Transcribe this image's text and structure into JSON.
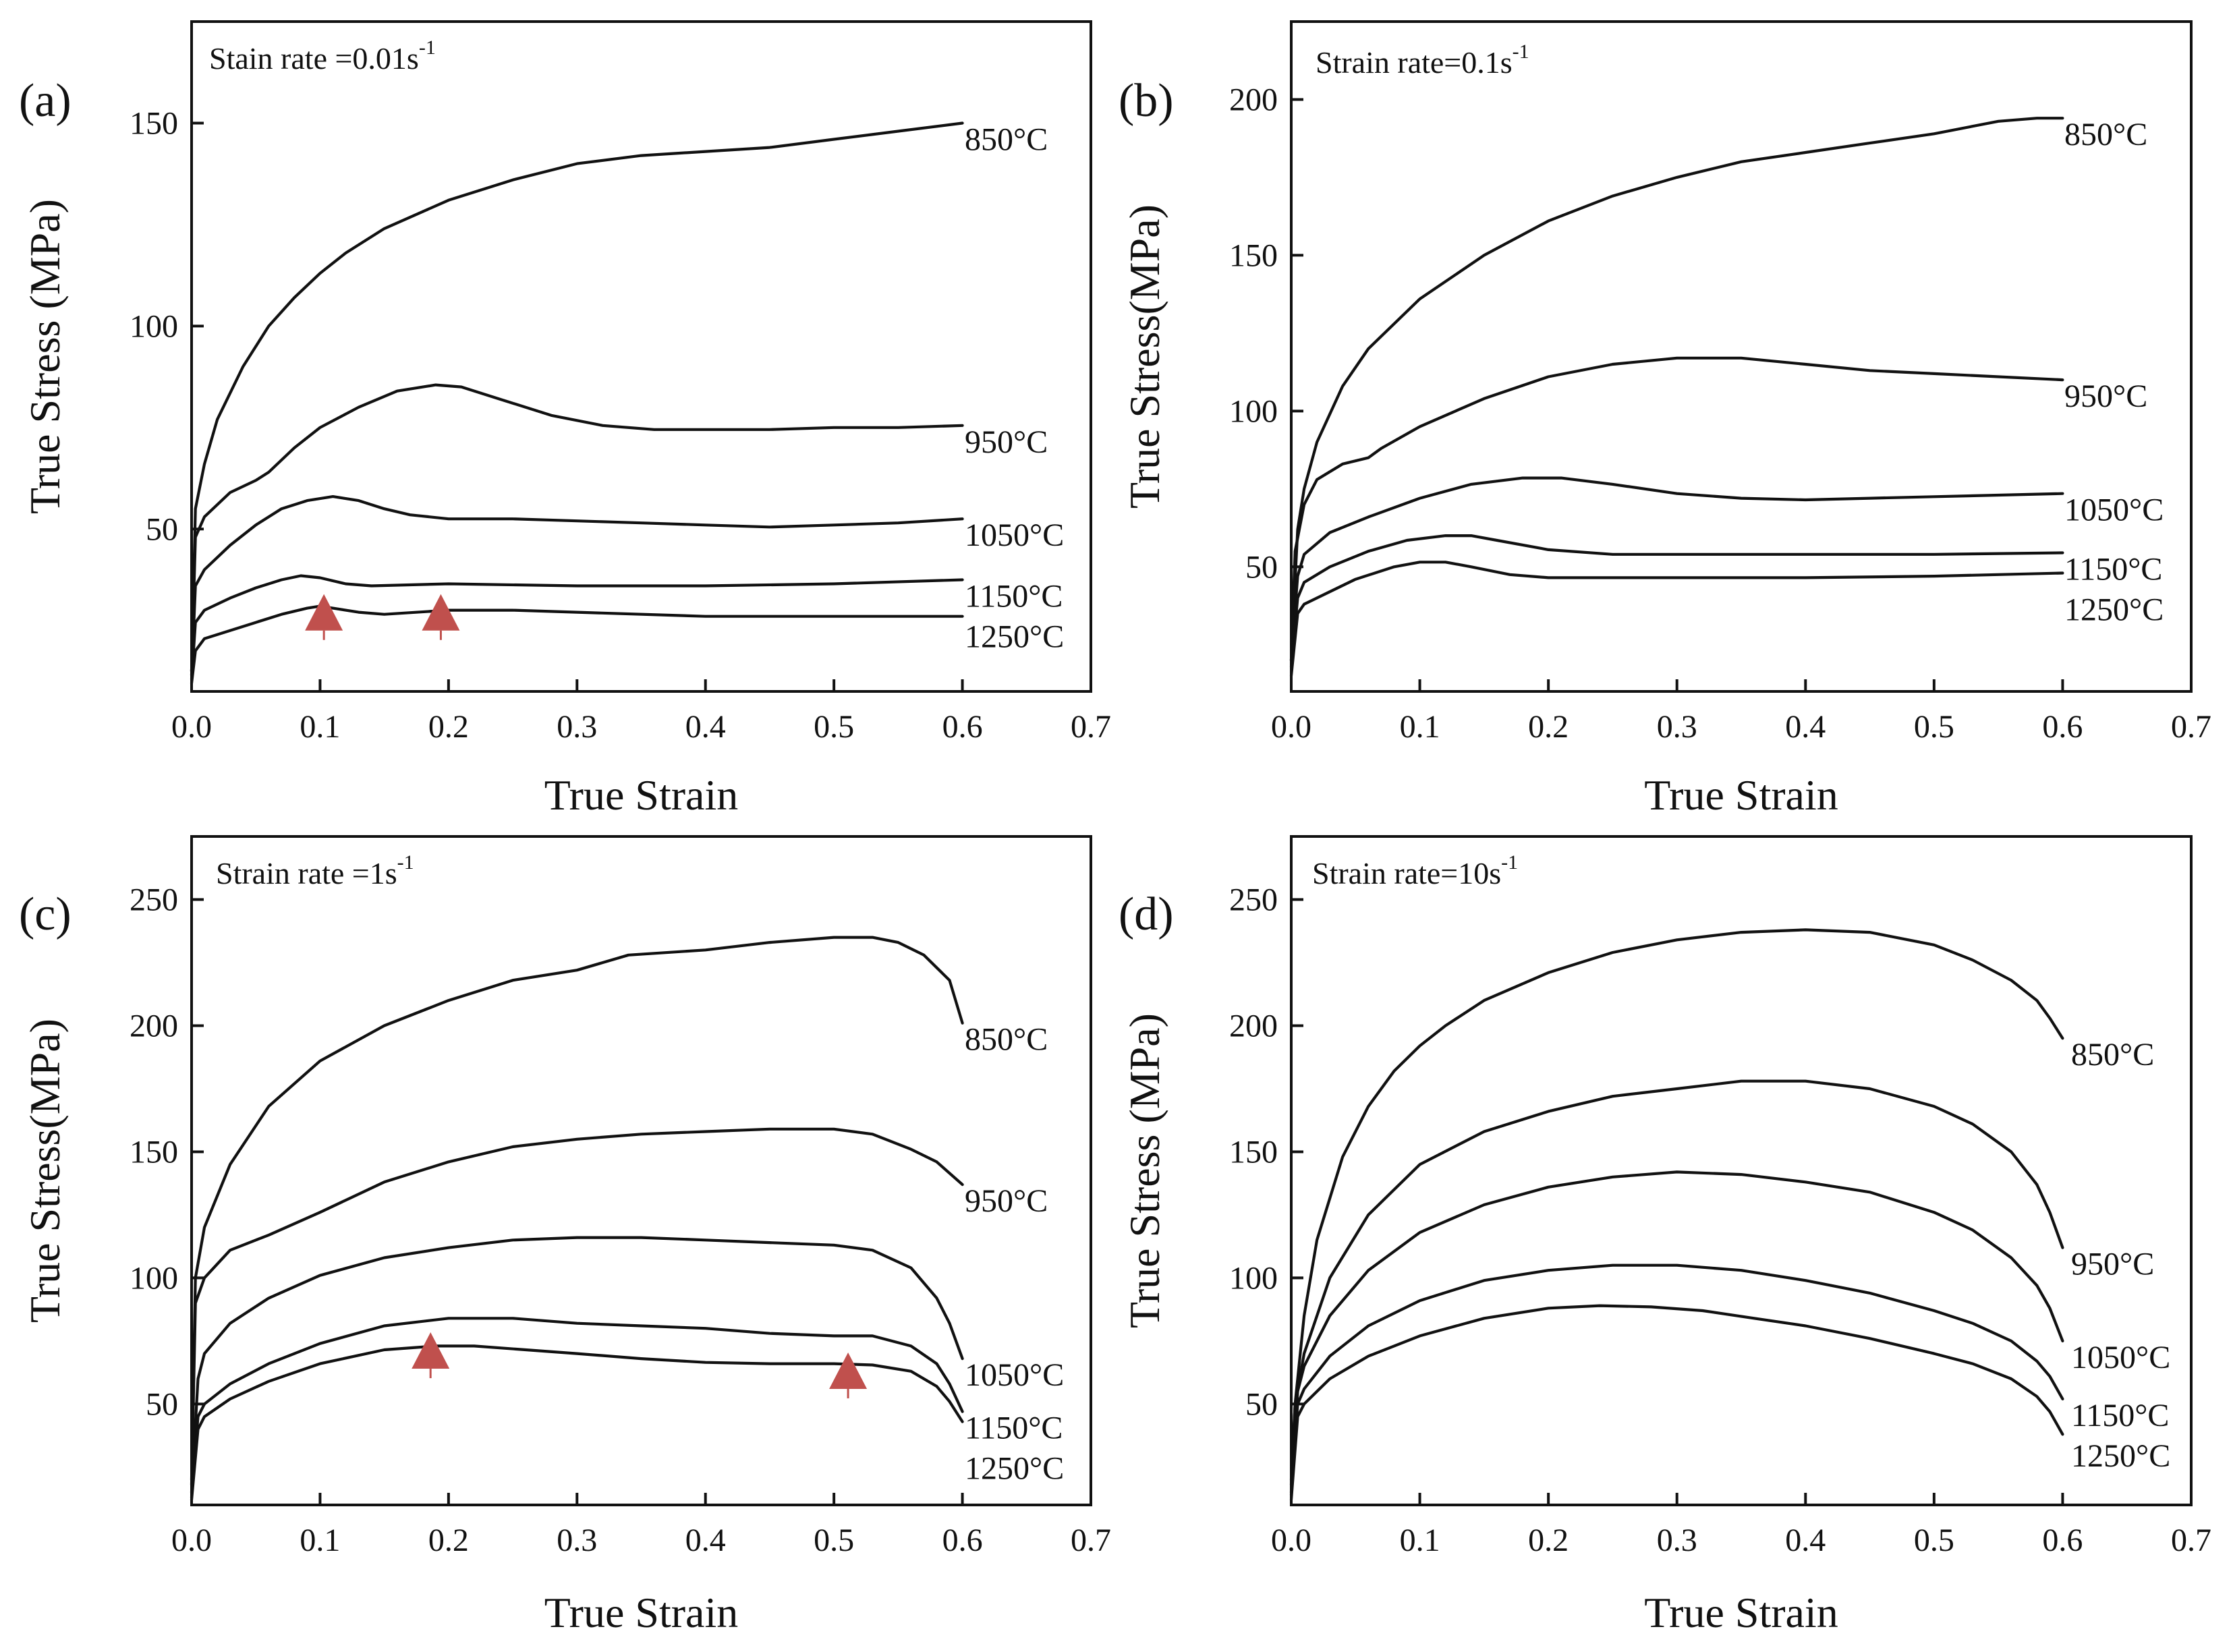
{
  "figure": {
    "panels": [
      {
        "letter": "(a)",
        "rate_main": "Stain rate =0.01s",
        "rate_sup": "-1",
        "ylabel": "True Stress (MPa)",
        "xlabel": "True Strain",
        "xticks": [
          "0.0",
          "0.1",
          "0.2",
          "0.3",
          "0.4",
          "0.5",
          "0.6",
          "0.7"
        ],
        "yticks": [
          "50",
          "100",
          "150"
        ],
        "markers": [
          {
            "x": 0.103,
            "y": 25,
            "color": "#c0504d"
          },
          {
            "x": 0.194,
            "y": 25,
            "color": "#c0504d"
          }
        ]
      },
      {
        "letter": "(b)",
        "rate_main": "Strain rate=0.1s",
        "rate_sup": "-1",
        "ylabel": "True Stress(MPa)",
        "xlabel": "True Strain",
        "xticks": [
          "0.0",
          "0.1",
          "0.2",
          "0.3",
          "0.4",
          "0.5",
          "0.6",
          "0.7"
        ],
        "yticks": [
          "50",
          "100",
          "150",
          "200"
        ],
        "markers": []
      },
      {
        "letter": "(c)",
        "rate_main": "Strain rate =1s",
        "rate_sup": "-1",
        "ylabel": "True Stress(MPa)",
        "xlabel": "True Strain",
        "xticks": [
          "0.0",
          "0.1",
          "0.2",
          "0.3",
          "0.4",
          "0.5",
          "0.6",
          "0.7"
        ],
        "yticks": [
          "50",
          "100",
          "150",
          "200",
          "250"
        ],
        "markers": [
          {
            "x": 0.186,
            "y": 64,
            "color": "#c0504d"
          },
          {
            "x": 0.511,
            "y": 56,
            "color": "#c0504d"
          }
        ]
      },
      {
        "letter": "(d)",
        "rate_main": "Strain rate=10s",
        "rate_sup": "-1",
        "ylabel": "True Stress (MPa)",
        "xlabel": "True Strain",
        "xticks": [
          "0.0",
          "0.1",
          "0.2",
          "0.3",
          "0.4",
          "0.5",
          "0.6",
          "0.7"
        ],
        "yticks": [
          "50",
          "100",
          "150",
          "200",
          "250"
        ],
        "markers": []
      }
    ]
  },
  "chart_data": [
    {
      "type": "line",
      "title": "Stain rate =0.01s-1",
      "xlabel": "True Strain",
      "ylabel": "True Stress (MPa)",
      "xlim": [
        0,
        0.7
      ],
      "ylim": [
        10,
        175
      ],
      "series": [
        {
          "name": "850°C",
          "x": [
            0,
            0.003,
            0.01,
            0.02,
            0.04,
            0.06,
            0.08,
            0.1,
            0.12,
            0.15,
            0.2,
            0.25,
            0.3,
            0.35,
            0.4,
            0.45,
            0.5,
            0.55,
            0.6
          ],
          "values": [
            15,
            55,
            66,
            77,
            90,
            100,
            107,
            113,
            118,
            124,
            131,
            136,
            140,
            142,
            143,
            144,
            146,
            148,
            150
          ]
        },
        {
          "name": "950°C",
          "x": [
            0,
            0.003,
            0.01,
            0.03,
            0.05,
            0.06,
            0.08,
            0.1,
            0.13,
            0.16,
            0.19,
            0.21,
            0.24,
            0.28,
            0.32,
            0.36,
            0.4,
            0.45,
            0.5,
            0.55,
            0.6
          ],
          "values": [
            15,
            48,
            53,
            59,
            62,
            64,
            70,
            75,
            80,
            84,
            85.5,
            85,
            82,
            78,
            75.5,
            74.5,
            74.5,
            74.5,
            75,
            75,
            75.5
          ]
        },
        {
          "name": "1050°C",
          "x": [
            0,
            0.003,
            0.01,
            0.03,
            0.05,
            0.07,
            0.09,
            0.11,
            0.13,
            0.15,
            0.17,
            0.2,
            0.25,
            0.3,
            0.35,
            0.4,
            0.45,
            0.5,
            0.55,
            0.6
          ],
          "values": [
            14,
            36,
            40,
            46,
            51,
            55,
            57,
            58,
            57,
            55,
            53.5,
            52.5,
            52.5,
            52,
            51.5,
            51,
            50.5,
            51,
            51.5,
            52.5
          ]
        },
        {
          "name": "1150°C",
          "x": [
            0,
            0.003,
            0.01,
            0.03,
            0.05,
            0.07,
            0.085,
            0.1,
            0.12,
            0.14,
            0.2,
            0.3,
            0.4,
            0.5,
            0.6
          ],
          "values": [
            13,
            27,
            30,
            33,
            35.5,
            37.5,
            38.5,
            38,
            36.5,
            36,
            36.5,
            36,
            36,
            36.5,
            37.5
          ]
        },
        {
          "name": "1250°C",
          "x": [
            0,
            0.003,
            0.01,
            0.03,
            0.05,
            0.07,
            0.09,
            0.1,
            0.11,
            0.13,
            0.15,
            0.2,
            0.25,
            0.3,
            0.4,
            0.5,
            0.6
          ],
          "values": [
            12,
            20,
            23,
            25,
            27,
            29,
            30.5,
            31,
            30.5,
            29.5,
            29,
            30,
            30,
            29.5,
            28.5,
            28.5,
            28.5
          ]
        }
      ]
    },
    {
      "type": "line",
      "title": "Strain rate=0.1s-1",
      "xlabel": "True Strain",
      "ylabel": "True Stress(MPa)",
      "xlim": [
        0,
        0.7
      ],
      "ylim": [
        10,
        225
      ],
      "series": [
        {
          "name": "850°C",
          "x": [
            0,
            0.005,
            0.01,
            0.02,
            0.04,
            0.06,
            0.08,
            0.1,
            0.15,
            0.2,
            0.25,
            0.3,
            0.35,
            0.4,
            0.45,
            0.5,
            0.55,
            0.58,
            0.6
          ],
          "values": [
            20,
            62,
            75,
            90,
            108,
            120,
            128,
            136,
            150,
            161,
            169,
            175,
            180,
            183,
            186,
            189,
            193,
            194,
            194
          ]
        },
        {
          "name": "950°C",
          "x": [
            0,
            0.003,
            0.01,
            0.02,
            0.04,
            0.06,
            0.07,
            0.1,
            0.15,
            0.2,
            0.25,
            0.3,
            0.35,
            0.4,
            0.45,
            0.5,
            0.55,
            0.6
          ],
          "values": [
            20,
            55,
            70,
            78,
            83,
            85,
            88,
            95,
            104,
            111,
            115,
            117,
            117,
            115,
            113,
            112,
            111,
            110
          ]
        },
        {
          "name": "1050°C",
          "x": [
            0,
            0.005,
            0.01,
            0.03,
            0.06,
            0.1,
            0.14,
            0.18,
            0.21,
            0.25,
            0.3,
            0.35,
            0.4,
            0.45,
            0.5,
            0.55,
            0.6
          ],
          "values": [
            20,
            47,
            54,
            61,
            66,
            72,
            76.5,
            78.5,
            78.5,
            76.5,
            73.5,
            72,
            71.5,
            72,
            72.5,
            73,
            73.5
          ]
        },
        {
          "name": "1150°C",
          "x": [
            0,
            0.005,
            0.01,
            0.03,
            0.06,
            0.09,
            0.12,
            0.14,
            0.16,
            0.2,
            0.25,
            0.3,
            0.4,
            0.5,
            0.6
          ],
          "values": [
            18,
            40,
            45,
            50,
            55,
            58.5,
            60,
            60,
            58.5,
            55.5,
            54,
            54,
            54,
            54,
            54.5
          ]
        },
        {
          "name": "1250°C",
          "x": [
            0,
            0.005,
            0.01,
            0.03,
            0.05,
            0.08,
            0.1,
            0.12,
            0.14,
            0.17,
            0.2,
            0.25,
            0.3,
            0.4,
            0.5,
            0.6
          ],
          "values": [
            15,
            35,
            38,
            42,
            46,
            50,
            51.5,
            51.5,
            50,
            47.5,
            46.5,
            46.5,
            46.5,
            46.5,
            47,
            48
          ]
        }
      ]
    },
    {
      "type": "line",
      "title": "Strain rate =1s-1",
      "xlabel": "True Strain",
      "ylabel": "True Stress(MPa)",
      "xlim": [
        0,
        0.7
      ],
      "ylim": [
        10,
        275
      ],
      "series": [
        {
          "name": "850°C",
          "x": [
            0,
            0.003,
            0.01,
            0.03,
            0.06,
            0.1,
            0.15,
            0.2,
            0.25,
            0.3,
            0.32,
            0.34,
            0.4,
            0.45,
            0.5,
            0.53,
            0.55,
            0.57,
            0.59,
            0.6
          ],
          "values": [
            20,
            100,
            120,
            145,
            168,
            186,
            200,
            210,
            218,
            222,
            225,
            228,
            230,
            233,
            235,
            235,
            233,
            228,
            218,
            201
          ]
        },
        {
          "name": "950°C",
          "x": [
            0,
            0.003,
            0.01,
            0.03,
            0.06,
            0.1,
            0.15,
            0.2,
            0.25,
            0.3,
            0.35,
            0.4,
            0.45,
            0.5,
            0.53,
            0.56,
            0.58,
            0.6
          ],
          "values": [
            18,
            90,
            100,
            111,
            117,
            126,
            138,
            146,
            152,
            155,
            157,
            158,
            159,
            159,
            157,
            151,
            146,
            137
          ]
        },
        {
          "name": "1050°C",
          "x": [
            0,
            0.005,
            0.01,
            0.03,
            0.06,
            0.1,
            0.15,
            0.2,
            0.25,
            0.3,
            0.35,
            0.4,
            0.45,
            0.5,
            0.53,
            0.56,
            0.58,
            0.59,
            0.6
          ],
          "values": [
            15,
            60,
            70,
            82,
            92,
            101,
            108,
            112,
            115,
            116,
            116,
            115,
            114,
            113,
            111,
            104,
            92,
            82,
            68
          ]
        },
        {
          "name": "1150°C",
          "x": [
            0,
            0.005,
            0.01,
            0.03,
            0.06,
            0.1,
            0.15,
            0.2,
            0.25,
            0.3,
            0.35,
            0.4,
            0.45,
            0.5,
            0.53,
            0.56,
            0.58,
            0.59,
            0.6
          ],
          "values": [
            13,
            45,
            50,
            58,
            66,
            74,
            81,
            84,
            84,
            82,
            81,
            80,
            78,
            77,
            77,
            73,
            66,
            58,
            47
          ]
        },
        {
          "name": "1250°C",
          "x": [
            0,
            0.005,
            0.01,
            0.03,
            0.06,
            0.1,
            0.15,
            0.19,
            0.22,
            0.26,
            0.3,
            0.35,
            0.4,
            0.45,
            0.5,
            0.53,
            0.56,
            0.58,
            0.59,
            0.6
          ],
          "values": [
            12,
            40,
            45,
            52,
            59,
            66,
            71.5,
            73,
            73,
            71.5,
            70,
            68,
            66.5,
            66,
            66,
            65.5,
            63,
            57,
            51,
            43
          ]
        }
      ]
    },
    {
      "type": "line",
      "title": "Strain rate=10s-1",
      "xlabel": "True Strain",
      "ylabel": "True Stress (MPa)",
      "xlim": [
        0,
        0.7
      ],
      "ylim": [
        10,
        275
      ],
      "series": [
        {
          "name": "850°C",
          "x": [
            0,
            0.003,
            0.01,
            0.02,
            0.04,
            0.06,
            0.08,
            0.1,
            0.12,
            0.15,
            0.2,
            0.25,
            0.3,
            0.35,
            0.4,
            0.45,
            0.5,
            0.53,
            0.56,
            0.58,
            0.59,
            0.6
          ],
          "values": [
            20,
            50,
            85,
            115,
            148,
            168,
            182,
            192,
            200,
            210,
            221,
            229,
            234,
            237,
            238,
            237,
            232,
            226,
            218,
            210,
            203,
            195
          ]
        },
        {
          "name": "950°C",
          "x": [
            0,
            0.003,
            0.01,
            0.03,
            0.06,
            0.1,
            0.15,
            0.2,
            0.25,
            0.3,
            0.35,
            0.4,
            0.45,
            0.5,
            0.53,
            0.56,
            0.58,
            0.59,
            0.6
          ],
          "values": [
            18,
            50,
            70,
            100,
            125,
            145,
            158,
            166,
            172,
            175,
            178,
            178,
            175,
            168,
            161,
            150,
            137,
            126,
            112
          ]
        },
        {
          "name": "1050°C",
          "x": [
            0,
            0.005,
            0.01,
            0.03,
            0.06,
            0.1,
            0.15,
            0.2,
            0.25,
            0.3,
            0.35,
            0.4,
            0.45,
            0.5,
            0.53,
            0.56,
            0.58,
            0.59,
            0.6
          ],
          "values": [
            15,
            55,
            65,
            85,
            103,
            118,
            129,
            136,
            140,
            142,
            141,
            138,
            134,
            126,
            119,
            108,
            97,
            88,
            75
          ]
        },
        {
          "name": "1150°C",
          "x": [
            0,
            0.005,
            0.01,
            0.03,
            0.06,
            0.1,
            0.15,
            0.2,
            0.25,
            0.3,
            0.35,
            0.4,
            0.45,
            0.5,
            0.53,
            0.56,
            0.58,
            0.59,
            0.6
          ],
          "values": [
            14,
            50,
            56,
            69,
            81,
            91,
            99,
            103,
            105,
            105,
            103,
            99,
            94,
            87,
            82,
            75,
            67,
            61,
            52
          ]
        },
        {
          "name": "1250°C",
          "x": [
            0,
            0.005,
            0.01,
            0.03,
            0.06,
            0.1,
            0.15,
            0.2,
            0.24,
            0.28,
            0.32,
            0.36,
            0.4,
            0.45,
            0.5,
            0.53,
            0.56,
            0.58,
            0.59,
            0.6
          ],
          "values": [
            12,
            45,
            50,
            60,
            69,
            77,
            84,
            88,
            89,
            88.5,
            87,
            84,
            81,
            76,
            70,
            66,
            60,
            53,
            47,
            38
          ]
        }
      ]
    }
  ]
}
